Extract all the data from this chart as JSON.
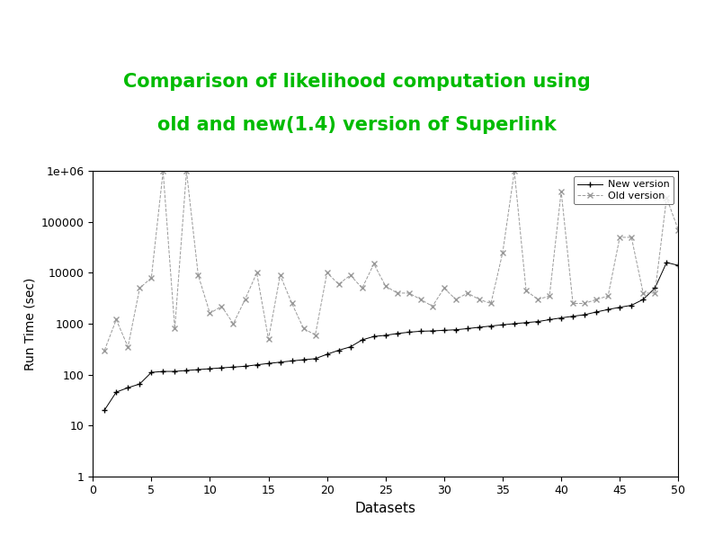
{
  "title_line1": "Comparison of likelihood computation using",
  "title_line2": "old and new(1.4) version of Superlink",
  "title_color": "#00bb00",
  "xlabel": "Datasets",
  "ylabel": "Run Time (sec)",
  "xlim": [
    0,
    50
  ],
  "ylim_log": [
    1,
    1000000
  ],
  "background_color": "#ffffff",
  "new_version_x": [
    1,
    2,
    3,
    4,
    5,
    6,
    7,
    8,
    9,
    10,
    11,
    12,
    13,
    14,
    15,
    16,
    17,
    18,
    19,
    20,
    21,
    22,
    23,
    24,
    25,
    26,
    27,
    28,
    29,
    30,
    31,
    32,
    33,
    34,
    35,
    36,
    37,
    38,
    39,
    40,
    41,
    42,
    43,
    44,
    45,
    46,
    47,
    48,
    49,
    50
  ],
  "new_version_y": [
    20,
    45,
    55,
    65,
    110,
    115,
    115,
    120,
    125,
    130,
    135,
    140,
    145,
    155,
    165,
    175,
    185,
    195,
    205,
    250,
    300,
    350,
    480,
    560,
    590,
    640,
    680,
    710,
    720,
    740,
    760,
    800,
    850,
    900,
    950,
    1000,
    1050,
    1100,
    1200,
    1300,
    1400,
    1500,
    1700,
    1900,
    2100,
    2300,
    3000,
    5000,
    16000,
    14000
  ],
  "old_version_x": [
    1,
    2,
    3,
    4,
    5,
    6,
    7,
    8,
    9,
    10,
    11,
    12,
    13,
    14,
    15,
    16,
    17,
    18,
    19,
    20,
    21,
    22,
    23,
    24,
    25,
    26,
    27,
    28,
    29,
    30,
    31,
    32,
    33,
    34,
    35,
    36,
    37,
    38,
    39,
    40,
    41,
    42,
    43,
    44,
    45,
    46,
    47,
    48,
    49,
    50
  ],
  "old_version_y": [
    300,
    1200,
    350,
    5000,
    8000,
    1000000,
    800,
    1000000,
    9000,
    1600,
    2200,
    1000,
    3000,
    10000,
    500,
    9000,
    2500,
    800,
    600,
    10000,
    6000,
    9000,
    5000,
    15000,
    5500,
    4000,
    4000,
    3000,
    2200,
    5000,
    3000,
    4000,
    3000,
    2500,
    25000,
    1000000,
    4500,
    3000,
    3500,
    400000,
    2500,
    2500,
    3000,
    3500,
    50000,
    50000,
    4000,
    4000,
    300000,
    70000
  ],
  "line_color": "#999999",
  "legend_new": "New version",
  "legend_old": "Old version",
  "ytick_labels": [
    "1",
    "10",
    "100",
    "1000",
    "10000",
    "100000",
    "1e+06"
  ],
  "ytick_values": [
    1,
    10,
    100,
    1000,
    10000,
    100000,
    1000000
  ]
}
